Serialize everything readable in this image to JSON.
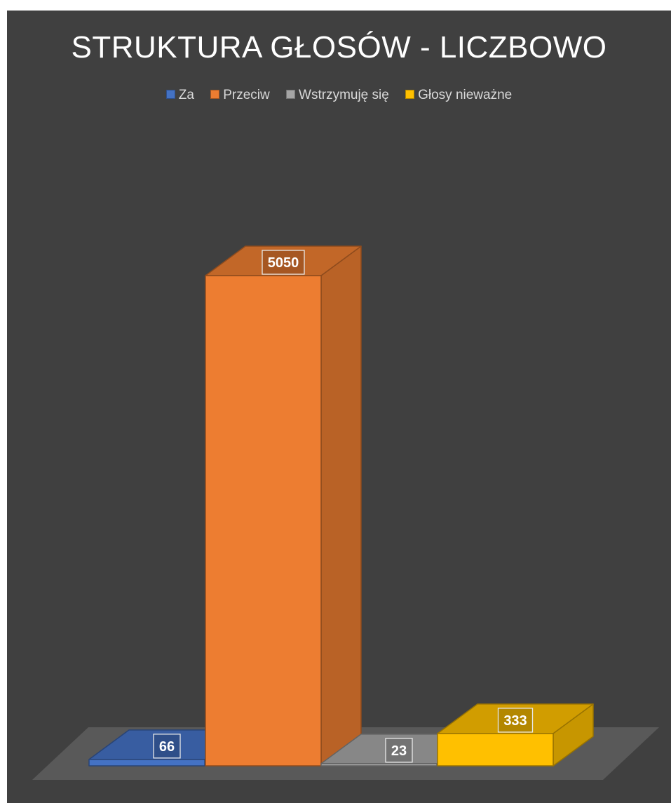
{
  "chart_data": {
    "type": "bar",
    "title": "STRUKTURA GŁOSÓW - LICZBOWO",
    "categories": [
      "Za",
      "Przeciw",
      "Wstrzymuję się",
      "Głosy nieważne"
    ],
    "values": [
      66,
      5050,
      23,
      333
    ],
    "value_labels": [
      "66",
      "5050",
      "23",
      "333"
    ],
    "ylim": [
      0,
      5050
    ],
    "grid": false,
    "legend_position": "top",
    "style": "3d-column",
    "series_colors": [
      "#4472C4",
      "#ED7D31",
      "#A5A5A5",
      "#FFC000"
    ],
    "background": "#404040"
  }
}
